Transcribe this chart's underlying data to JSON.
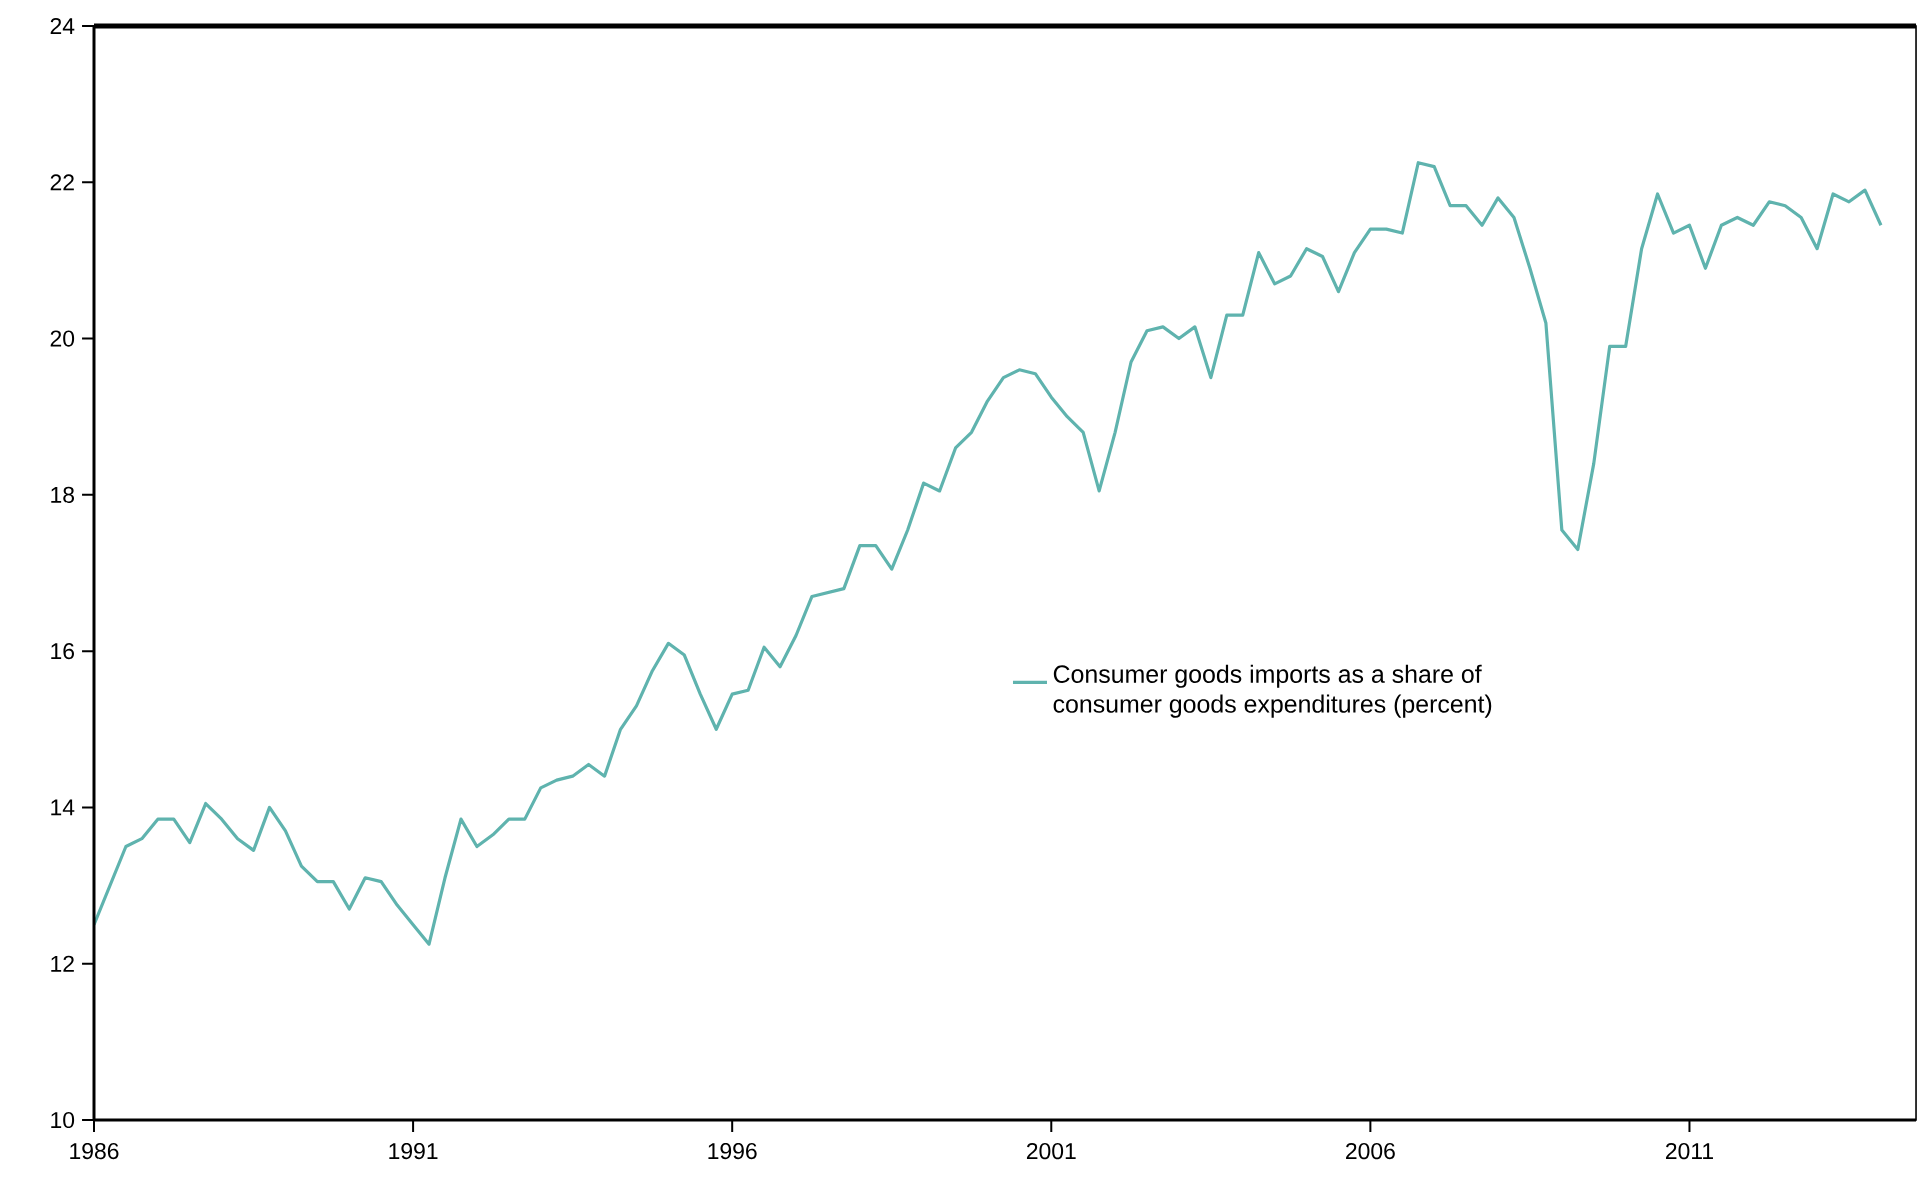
{
  "chart_data": {
    "type": "line",
    "xlim": [
      1986,
      2014.55
    ],
    "xticks": [
      1986,
      1991,
      1996,
      2001,
      2006,
      2011
    ],
    "ylim": [
      10,
      24
    ],
    "yticks": [
      10,
      12,
      14,
      16,
      18,
      20,
      22,
      24
    ],
    "grid": false,
    "legend": "right",
    "marker": "none",
    "line_style": "solid",
    "x": [
      1986.0,
      1986.25,
      1986.5,
      1986.75,
      1987.0,
      1987.25,
      1987.5,
      1987.75,
      1988.0,
      1988.25,
      1988.5,
      1988.75,
      1989.0,
      1989.25,
      1989.5,
      1989.75,
      1990.0,
      1990.25,
      1990.5,
      1990.75,
      1991.0,
      1991.25,
      1991.5,
      1991.75,
      1992.0,
      1992.25,
      1992.5,
      1992.75,
      1993.0,
      1993.25,
      1993.5,
      1993.75,
      1994.0,
      1994.25,
      1994.5,
      1994.75,
      1995.0,
      1995.25,
      1995.5,
      1995.75,
      1996.0,
      1996.25,
      1996.5,
      1996.75,
      1997.0,
      1997.25,
      1997.5,
      1997.75,
      1998.0,
      1998.25,
      1998.5,
      1998.75,
      1999.0,
      1999.25,
      1999.5,
      1999.75,
      2000.0,
      2000.25,
      2000.5,
      2000.75,
      2001.0,
      2001.25,
      2001.5,
      2001.75,
      2002.0,
      2002.25,
      2002.5,
      2002.75,
      2003.0,
      2003.25,
      2003.5,
      2003.75,
      2004.0,
      2004.25,
      2004.5,
      2004.75,
      2005.0,
      2005.25,
      2005.5,
      2005.75,
      2006.0,
      2006.25,
      2006.5,
      2006.75,
      2007.0,
      2007.25,
      2007.5,
      2007.75,
      2008.0,
      2008.25,
      2008.5,
      2008.75,
      2009.0,
      2009.25,
      2009.5,
      2009.75,
      2010.0,
      2010.25,
      2010.5,
      2010.75,
      2011.0,
      2011.25,
      2011.5,
      2011.75,
      2012.0,
      2012.25,
      2012.5,
      2012.75,
      2013.0,
      2013.25,
      2013.5,
      2013.75,
      2014.0
    ],
    "series": [
      {
        "name": "Consumer goods imports as a share of consumer goods expenditures (percent)",
        "color": "#5fb3ae",
        "values": [
          12.5,
          13.0,
          13.5,
          13.6,
          13.85,
          13.85,
          13.55,
          14.05,
          13.85,
          13.6,
          13.45,
          14.0,
          13.7,
          13.25,
          13.05,
          13.05,
          12.7,
          13.1,
          13.05,
          12.75,
          12.5,
          12.25,
          13.1,
          13.85,
          13.5,
          13.65,
          13.85,
          13.85,
          14.25,
          14.35,
          14.4,
          14.55,
          14.4,
          15.0,
          15.3,
          15.75,
          16.1,
          15.95,
          15.45,
          15.0,
          15.45,
          15.5,
          16.05,
          15.8,
          16.2,
          16.7,
          16.75,
          16.8,
          17.35,
          17.35,
          17.05,
          17.55,
          18.15,
          18.05,
          18.6,
          18.8,
          19.2,
          19.5,
          19.6,
          19.55,
          19.25,
          19.0,
          18.8,
          18.05,
          18.8,
          19.7,
          20.1,
          20.15,
          20.0,
          20.15,
          19.5,
          20.3,
          20.3,
          21.1,
          20.7,
          20.8,
          21.15,
          21.05,
          20.6,
          21.1,
          21.4,
          21.4,
          21.35,
          22.25,
          22.2,
          21.7,
          21.7,
          21.45,
          21.8,
          21.55,
          20.9,
          20.2,
          17.55,
          17.3,
          18.4,
          19.9,
          19.9,
          21.15,
          21.85,
          21.35,
          21.45,
          20.9,
          21.45,
          21.55,
          21.45,
          21.75,
          21.7,
          21.55,
          21.15,
          21.85,
          21.75,
          21.9,
          21.45
        ]
      }
    ]
  }
}
